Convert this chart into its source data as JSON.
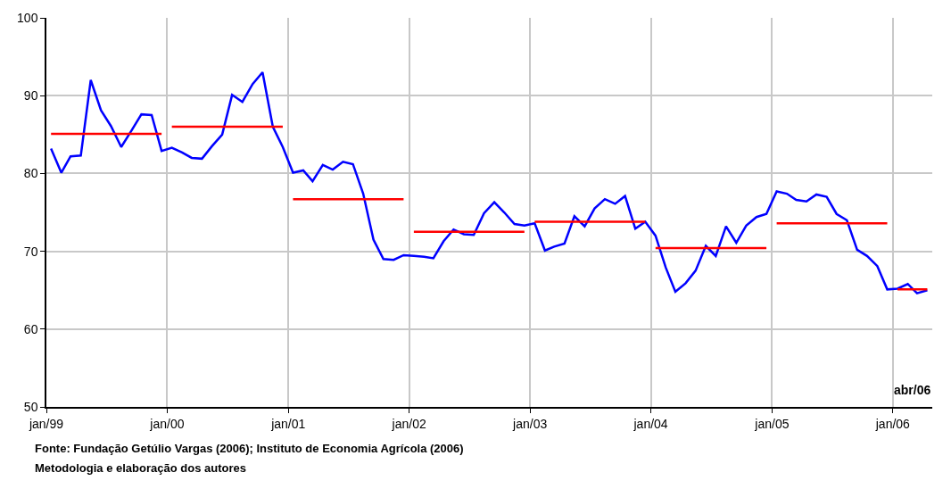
{
  "chart_data": {
    "type": "line",
    "xlabel": "abr/06",
    "x": [
      "1999-01-15",
      "1999-02-15",
      "1999-03-15",
      "1999-04-15",
      "1999-05-15",
      "1999-06-15",
      "1999-07-15",
      "1999-08-15",
      "1999-09-15",
      "1999-10-15",
      "1999-11-15",
      "1999-12-15",
      "2000-01-15",
      "2000-02-15",
      "2000-03-15",
      "2000-04-15",
      "2000-05-15",
      "2000-06-15",
      "2000-07-15",
      "2000-08-15",
      "2000-09-15",
      "2000-10-15",
      "2000-11-15",
      "2000-12-15",
      "2001-01-15",
      "2001-02-15",
      "2001-03-15",
      "2001-04-15",
      "2001-05-15",
      "2001-06-15",
      "2001-07-15",
      "2001-08-15",
      "2001-09-15",
      "2001-10-15",
      "2001-11-15",
      "2001-12-15",
      "2002-01-15",
      "2002-02-15",
      "2002-03-15",
      "2002-04-15",
      "2002-05-15",
      "2002-06-15",
      "2002-07-15",
      "2002-08-15",
      "2002-09-15",
      "2002-10-15",
      "2002-11-15",
      "2002-12-15",
      "2003-01-15",
      "2003-02-15",
      "2003-03-15",
      "2003-04-15",
      "2003-05-15",
      "2003-06-15",
      "2003-07-15",
      "2003-08-15",
      "2003-09-15",
      "2003-10-15",
      "2003-11-15",
      "2003-12-15",
      "2004-01-15",
      "2004-02-15",
      "2004-03-15",
      "2004-04-15",
      "2004-05-15",
      "2004-06-15",
      "2004-07-15",
      "2004-08-15",
      "2004-09-15",
      "2004-10-15",
      "2004-11-15",
      "2004-12-15",
      "2005-01-15",
      "2005-02-15",
      "2005-03-15",
      "2005-04-15",
      "2005-05-15",
      "2005-06-15",
      "2005-07-15",
      "2005-08-15",
      "2005-09-15",
      "2005-10-15",
      "2005-11-15",
      "2005-12-15",
      "2006-01-15",
      "2006-02-15",
      "2006-03-15",
      "2006-04-15"
    ],
    "series": [
      {
        "color": "#0000ff",
        "values": [
          83.2,
          80.1,
          82.2,
          82.3,
          92.0,
          88.1,
          86.1,
          83.4,
          85.5,
          87.6,
          87.5,
          82.9,
          83.3,
          82.7,
          82.0,
          81.9,
          83.5,
          85.0,
          90.1,
          89.2,
          91.5,
          93.0,
          86.0,
          83.4,
          80.1,
          80.4,
          79.0,
          81.1,
          80.5,
          81.5,
          81.2,
          77.4,
          71.5,
          69.0,
          68.9,
          69.5,
          69.4,
          69.3,
          69.1,
          71.3,
          72.8,
          72.2,
          72.1,
          74.9,
          76.3,
          75.0,
          73.5,
          73.3,
          73.6,
          70.1,
          70.6,
          71.0,
          74.5,
          73.2,
          75.5,
          76.7,
          76.1,
          77.1,
          72.9,
          73.8,
          72.0,
          67.9,
          64.8,
          65.9,
          67.5,
          70.7,
          69.4,
          73.2,
          71.1,
          73.3,
          74.4,
          74.8,
          77.7,
          77.4,
          76.6,
          76.4,
          77.3,
          77.0,
          74.8,
          74.0,
          70.2,
          69.4,
          68.1,
          65.1,
          65.2,
          65.8,
          64.6,
          65.0
        ]
      },
      {
        "type": "line",
        "color": "#ff0000",
        "x": [
          "1999-01-15",
          "1999-12-15",
          null,
          "2000-01-15",
          "2000-12-15",
          null,
          "2001-01-15",
          "2001-12-15",
          null,
          "2002-01-15",
          "2002-12-15",
          null,
          "2003-01-15",
          "2003-12-15",
          null,
          "2004-01-15",
          "2004-12-15",
          null,
          "2005-01-15",
          "2005-12-15",
          null,
          "2006-01-15",
          "2006-04-15"
        ],
        "values": [
          85.1,
          85.1,
          null,
          86.0,
          86.0,
          null,
          76.7,
          76.7,
          null,
          72.5,
          72.5,
          null,
          73.8,
          73.8,
          null,
          70.4,
          70.4,
          null,
          73.6,
          73.6,
          null,
          65.1,
          65.1
        ]
      }
    ],
    "xlim": [
      "1999-01-01",
      "2006-04-30"
    ],
    "xticks": [
      {
        "value": "1999-01-01",
        "label": "jan/99"
      },
      {
        "value": "2000-01-01",
        "label": "jan/00"
      },
      {
        "value": "2001-01-01",
        "label": "jan/01"
      },
      {
        "value": "2002-01-01",
        "label": "jan/02"
      },
      {
        "value": "2003-01-01",
        "label": "jan/03"
      },
      {
        "value": "2004-01-01",
        "label": "jan/04"
      },
      {
        "value": "2005-01-01",
        "label": "jan/05"
      },
      {
        "value": "2006-01-01",
        "label": "jan/06"
      }
    ],
    "ylim": [
      50,
      100
    ],
    "yticks": [
      50,
      60,
      70,
      80,
      90,
      100
    ],
    "grid": true,
    "marker": "none",
    "line_style": "solid",
    "annotations": [
      "Fonte: Fundação Getúlio Vargas (2006); Instituto de Economia Agrícola (2006)",
      "Metodologia e elaboração dos autores"
    ]
  }
}
